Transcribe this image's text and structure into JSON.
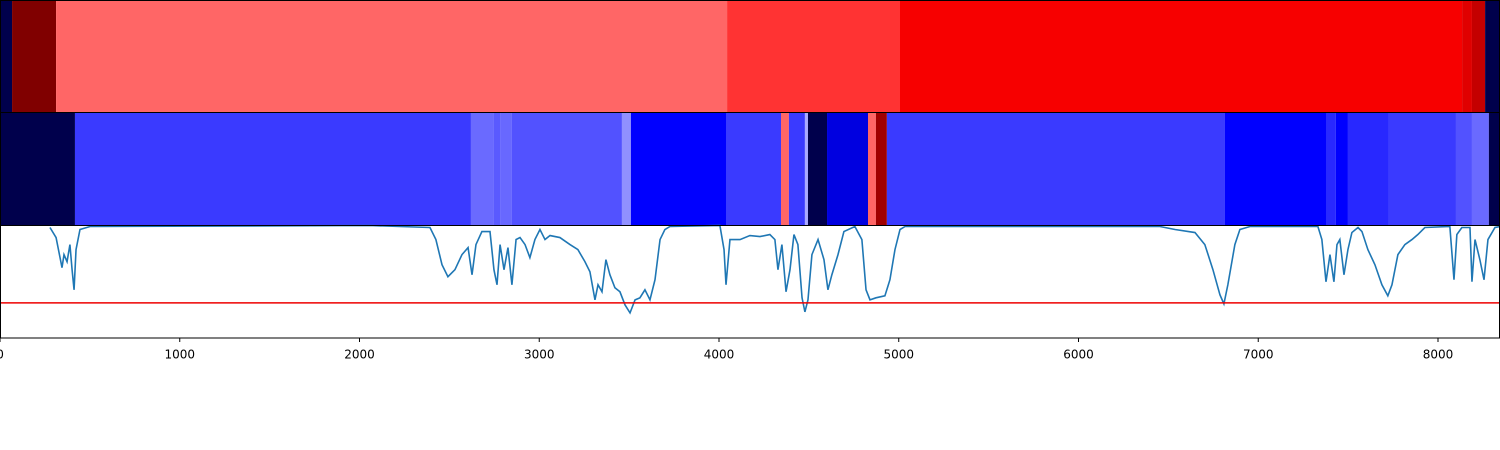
{
  "chart_data": {
    "type": "segmentation",
    "xlim": [
      0,
      8345
    ],
    "xticks": [
      0,
      1000,
      2000,
      3000,
      4000,
      5000,
      6000,
      7000,
      8000
    ],
    "bands": [
      {
        "edges": [
          0,
          67,
          312,
          4045,
          5007,
          8134,
          8189,
          8262,
          8345
        ],
        "colors": [
          "#00004c",
          "#800000",
          "#ff6666",
          "#ff3333",
          "#f70000",
          "#e00000",
          "#c40000",
          "#00004c"
        ]
      },
      {
        "edges": [
          0,
          417,
          2620,
          2748,
          2782,
          2848,
          3460,
          3510,
          4039,
          4345,
          4389,
          4478,
          4495,
          4601,
          4829,
          4873,
          4934,
          6815,
          7377,
          7432,
          7499,
          7727,
          8100,
          8189,
          8283,
          8345
        ],
        "colors": [
          "#00004c",
          "#3a3aff",
          "#6a6aff",
          "#5a5aff",
          "#6868ff",
          "#5252ff",
          "#9090ff",
          "#0000ff",
          "#3a3aff",
          "#ff6666",
          "#3a3aff",
          "#aaaaff",
          "#00004c",
          "#0000e0",
          "#ff6666",
          "#a00000",
          "#3a3aff",
          "#0000ff",
          "#2828ff",
          "#0000ff",
          "#2828ff",
          "#3a3aff",
          "#5252ff",
          "#6a6aff",
          "#00004c"
        ]
      }
    ],
    "ylim": [
      0,
      112
    ],
    "color": "#1f77b4",
    "threshold": 35,
    "threshold_color": "#ee0000",
    "x": [
      278,
      312,
      334,
      345,
      356,
      373,
      389,
      401,
      412,
      423,
      445,
      501,
      2058,
      2392,
      2425,
      2459,
      2492,
      2531,
      2570,
      2604,
      2626,
      2648,
      2681,
      2726,
      2748,
      2765,
      2782,
      2804,
      2826,
      2848,
      2871,
      2893,
      2921,
      2948,
      2976,
      3004,
      3032,
      3060,
      3115,
      3171,
      3215,
      3254,
      3282,
      3310,
      3327,
      3349,
      3371,
      3393,
      3421,
      3449,
      3477,
      3505,
      3533,
      3560,
      3588,
      3616,
      3644,
      3672,
      3699,
      3727,
      4005,
      4028,
      4039,
      4061,
      4117,
      4172,
      4228,
      4283,
      4311,
      4328,
      4350,
      4373,
      4395,
      4417,
      4439,
      4462,
      4478,
      4495,
      4517,
      4551,
      4584,
      4606,
      4628,
      4662,
      4695,
      4756,
      4795,
      4818,
      4840,
      4873,
      4923,
      4951,
      4979,
      5007,
      5035,
      6453,
      6537,
      6648,
      6703,
      6748,
      6787,
      6809,
      6831,
      6870,
      6898,
      6954,
      7332,
      7354,
      7377,
      7399,
      7421,
      7438,
      7454,
      7477,
      7499,
      7521,
      7555,
      7577,
      7610,
      7649,
      7688,
      7721,
      7744,
      7777,
      7816,
      7855,
      7888,
      7927,
      8066,
      8089,
      8105,
      8133,
      8178,
      8189,
      8206,
      8233,
      8256,
      8278,
      8317,
      8345
    ],
    "values": [
      110,
      100,
      80,
      70,
      83,
      76,
      93,
      68,
      48,
      88,
      108,
      111,
      112,
      110,
      98,
      73,
      61,
      68,
      83,
      90,
      63,
      93,
      106,
      106,
      68,
      53,
      93,
      68,
      90,
      53,
      98,
      100,
      93,
      80,
      98,
      108,
      98,
      102,
      100,
      93,
      88,
      76,
      66,
      38,
      53,
      46,
      78,
      63,
      50,
      46,
      33,
      25,
      38,
      40,
      48,
      38,
      58,
      98,
      108,
      111,
      112,
      88,
      53,
      98,
      98,
      102,
      101,
      103,
      98,
      68,
      93,
      46,
      68,
      103,
      93,
      40,
      26,
      38,
      83,
      98,
      78,
      48,
      63,
      83,
      106,
      111,
      98,
      48,
      38,
      40,
      42,
      58,
      88,
      108,
      111,
      111,
      108,
      105,
      93,
      68,
      43,
      34,
      53,
      93,
      108,
      111,
      111,
      98,
      56,
      83,
      56,
      93,
      98,
      63,
      88,
      105,
      110,
      106,
      88,
      73,
      53,
      42,
      53,
      83,
      93,
      98,
      103,
      110,
      111,
      58,
      103,
      110,
      110,
      56,
      98,
      78,
      58,
      98,
      110,
      111
    ]
  }
}
